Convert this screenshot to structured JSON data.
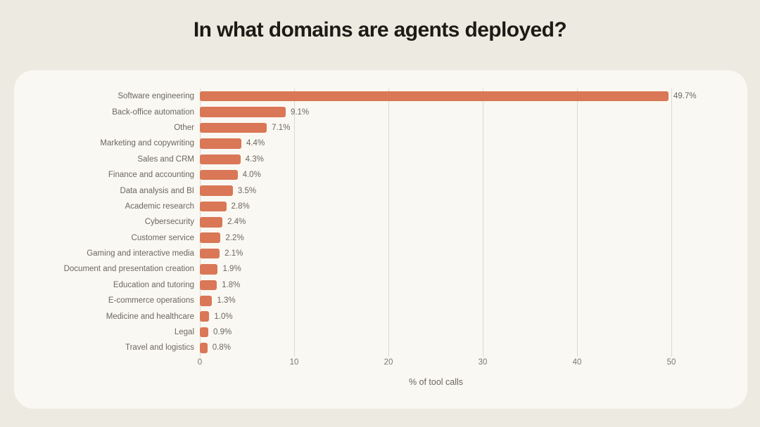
{
  "page": {
    "title": "In what domains are agents deployed?"
  },
  "chart_data": {
    "type": "bar",
    "orientation": "horizontal",
    "title": "In what domains are agents deployed?",
    "xlabel": "% of tool calls",
    "ylabel": "",
    "xlim": [
      0,
      52
    ],
    "x_ticks": [
      0,
      10,
      20,
      30,
      40,
      50
    ],
    "grid": true,
    "legend": false,
    "bar_color": "#d97757",
    "categories": [
      "Software engineering",
      "Back-office automation",
      "Other",
      "Marketing and copywriting",
      "Sales and CRM",
      "Finance and accounting",
      "Data analysis and BI",
      "Academic research",
      "Cybersecurity",
      "Customer service",
      "Gaming and interactive media",
      "Document and presentation creation",
      "Education and tutoring",
      "E-commerce operations",
      "Medicine and healthcare",
      "Legal",
      "Travel and logistics"
    ],
    "values": [
      49.7,
      9.1,
      7.1,
      4.4,
      4.3,
      4.0,
      3.5,
      2.8,
      2.4,
      2.2,
      2.1,
      1.9,
      1.8,
      1.3,
      1.0,
      0.9,
      0.8
    ],
    "value_labels": [
      "49.7%",
      "9.1%",
      "7.1%",
      "4.4%",
      "4.3%",
      "4.0%",
      "3.5%",
      "2.8%",
      "2.4%",
      "2.2%",
      "2.1%",
      "1.9%",
      "1.8%",
      "1.3%",
      "1.0%",
      "0.9%",
      "0.8%"
    ]
  },
  "colors": {
    "page_background": "#edeae1",
    "card_background": "#faf8f2",
    "bar": "#d97757",
    "gridline": "#ddd9d0",
    "label_text": "#6b675f",
    "title_text": "#1d1b16"
  }
}
